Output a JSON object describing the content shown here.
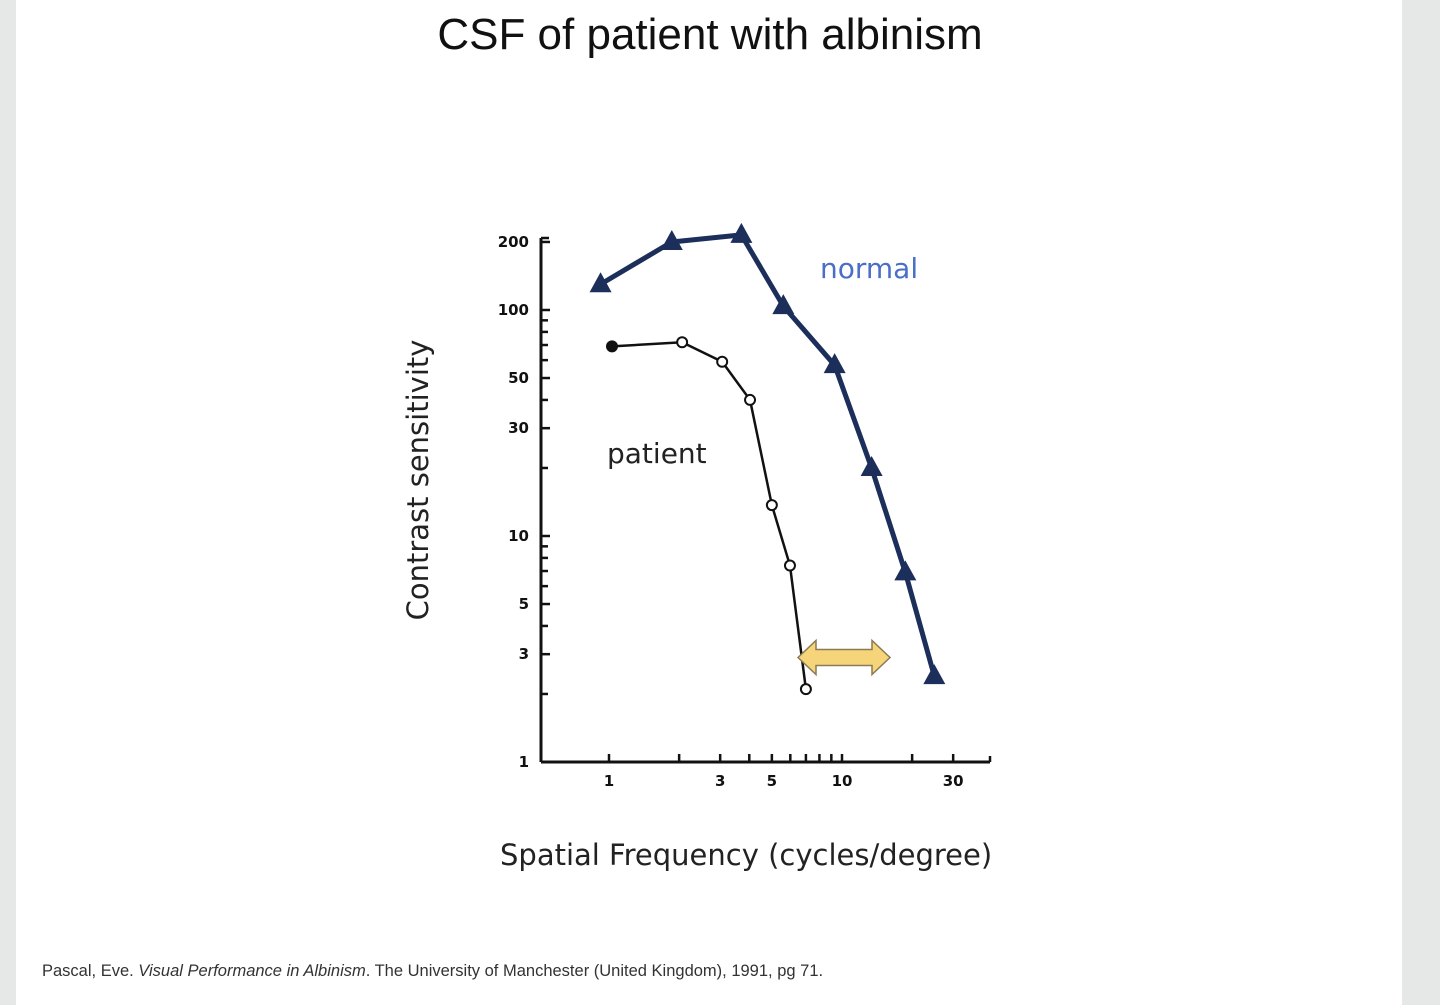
{
  "slide": {
    "title": "CSF of patient with albinism",
    "citation": {
      "author": "Pascal, Eve. ",
      "work": "Visual Performance in Albinism",
      "rest": ". The University of Manchester (United Kingdom), 1991, pg 71."
    }
  },
  "colors": {
    "normal": "#1c2e5a",
    "normal_label": "#4a6fc4",
    "patient": "#111111",
    "patient_label": "#222222",
    "arrow_fill": "#f6d57a",
    "arrow_stroke": "#8a7a55",
    "background": "#e6e8e8",
    "slide": "#ffffff"
  },
  "chart_data": {
    "type": "line",
    "title": "CSF of patient with albinism",
    "xlabel": "Spatial Frequency (cycles/degree)",
    "ylabel": "Contrast sensitivity",
    "xscale": "log",
    "yscale": "log",
    "xlim": [
      0.8,
      35
    ],
    "ylim": [
      1,
      220
    ],
    "x_ticks": [
      1,
      3,
      5,
      10,
      30
    ],
    "x_tick_labels": [
      "1",
      "3",
      "5",
      "10",
      "30"
    ],
    "y_ticks": [
      1,
      3,
      5,
      10,
      30,
      50,
      100,
      200
    ],
    "y_tick_labels": [
      "1",
      "3",
      "5",
      "10",
      "30",
      "50",
      "100",
      "200"
    ],
    "grid": false,
    "series": [
      {
        "name": "normal",
        "marker": "filled-triangle",
        "x": [
          0.92,
          1.86,
          3.7,
          5.6,
          9.3,
          13.4,
          18.7,
          24.9
        ],
        "y": [
          130,
          200,
          215,
          104,
          57,
          20,
          6.9,
          2.4
        ]
      },
      {
        "name": "patient",
        "marker": "open-circle",
        "x": [
          1.03,
          2.06,
          3.06,
          4.03,
          5.0,
          5.98,
          7.0
        ],
        "y": [
          69,
          72,
          59,
          40,
          13.7,
          7.4,
          2.1
        ]
      }
    ],
    "annotations": [
      {
        "type": "double-arrow",
        "color": "#f6d57a",
        "from_x": 6.5,
        "to_x": 12.5,
        "y": 2.9,
        "meaning": "acuity cutoff difference between patient and normal"
      },
      {
        "type": "text",
        "text": "normal",
        "x": 11.5,
        "y": 130
      },
      {
        "type": "text",
        "text": "patient",
        "x": 1.0,
        "y": 20
      }
    ]
  }
}
